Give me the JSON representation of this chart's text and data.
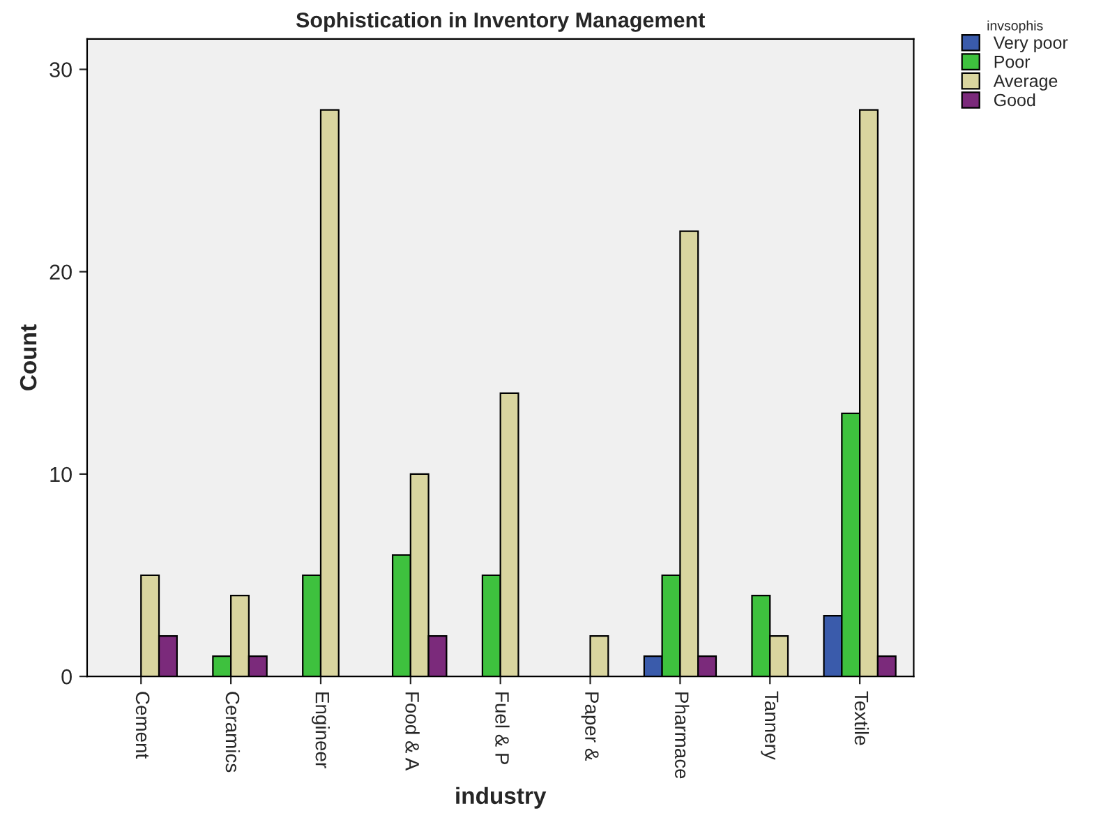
{
  "chart_data": {
    "type": "bar",
    "title": "Sophistication in Inventory Management",
    "xlabel": "industry",
    "ylabel": "Count",
    "legend_title": "invsophis",
    "legend": "top right",
    "categories": [
      "Cement",
      "Ceramics",
      "Engineer",
      "Food & A",
      "Fuel & P",
      "Paper &",
      "Pharmace",
      "Tannery",
      "Textile"
    ],
    "series": [
      {
        "name": "Very poor",
        "color": "#3a5bab",
        "values": [
          null,
          null,
          null,
          null,
          null,
          null,
          1,
          null,
          3
        ]
      },
      {
        "name": "Poor",
        "color": "#3ec13e",
        "values": [
          null,
          1,
          5,
          6,
          5,
          null,
          5,
          4,
          13
        ]
      },
      {
        "name": "Average",
        "color": "#d9d59f",
        "values": [
          5,
          4,
          28,
          10,
          14,
          2,
          22,
          2,
          28
        ]
      },
      {
        "name": "Good",
        "color": "#7b2a7b",
        "values": [
          2,
          1,
          null,
          2,
          null,
          null,
          1,
          null,
          1
        ]
      }
    ],
    "ylim": [
      0,
      31.5
    ],
    "yticks": [
      0,
      10,
      20,
      30
    ],
    "grid": false
  }
}
